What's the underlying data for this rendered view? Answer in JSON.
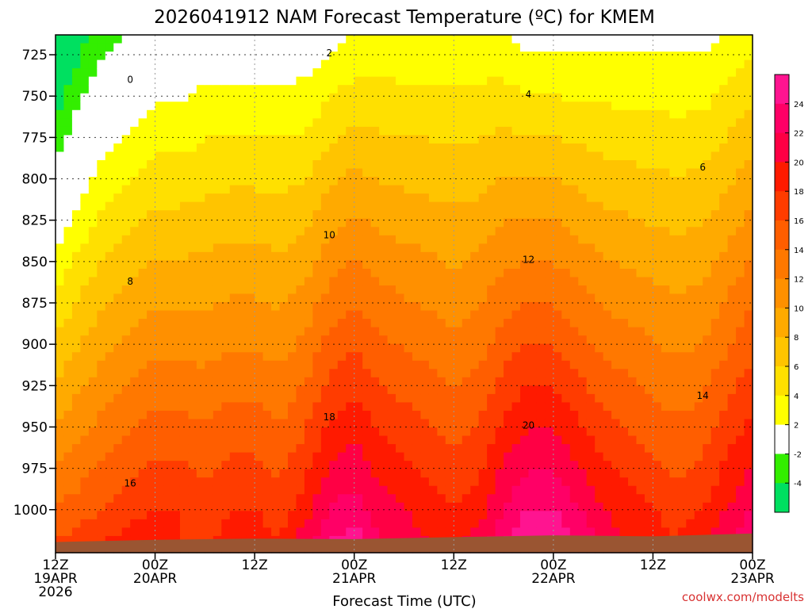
{
  "colors": {
    "bands": [
      {
        "from": -6,
        "to": -4,
        "color": "#00e060"
      },
      {
        "from": -4,
        "to": -2,
        "color": "#33ee00"
      },
      {
        "from": -2,
        "to": 2,
        "color": "#ffffff"
      },
      {
        "from": 2,
        "to": 4,
        "color": "#ffff00"
      },
      {
        "from": 4,
        "to": 6,
        "color": "#ffe000"
      },
      {
        "from": 6,
        "to": 8,
        "color": "#ffc400"
      },
      {
        "from": 8,
        "to": 10,
        "color": "#ffaa00"
      },
      {
        "from": 10,
        "to": 12,
        "color": "#ff9000"
      },
      {
        "from": 12,
        "to": 14,
        "color": "#ff7800"
      },
      {
        "from": 14,
        "to": 16,
        "color": "#ff5e00"
      },
      {
        "from": 16,
        "to": 18,
        "color": "#ff3c00"
      },
      {
        "from": 18,
        "to": 20,
        "color": "#ff1a00"
      },
      {
        "from": 20,
        "to": 22,
        "color": "#ff0044"
      },
      {
        "from": 22,
        "to": 24,
        "color": "#ff0066"
      },
      {
        "from": 24,
        "to": 26,
        "color": "#ff1490"
      }
    ],
    "ground": "#9a5532",
    "zero_contour": "#aa0066",
    "credit": "#d83232"
  },
  "chart_data": {
    "type": "heatmap",
    "title": "2026041912 NAM Forecast Temperature (ºC) for KMEM",
    "xlabel": "Forecast Time (UTC)",
    "ylabel": "",
    "credit": "coolwx.com/modelts",
    "x_range_hours": [
      0,
      84
    ],
    "y_range_hpa": [
      1026,
      713
    ],
    "y_ticks": [
      725,
      750,
      775,
      800,
      825,
      850,
      875,
      900,
      925,
      950,
      975,
      1000
    ],
    "x_ticks": [
      {
        "hour": 0,
        "lines": [
          "12Z",
          "19APR",
          "2026"
        ]
      },
      {
        "hour": 12,
        "lines": [
          "00Z",
          "20APR"
        ]
      },
      {
        "hour": 24,
        "lines": [
          "12Z"
        ]
      },
      {
        "hour": 36,
        "lines": [
          "00Z",
          "21APR"
        ]
      },
      {
        "hour": 48,
        "lines": [
          "12Z"
        ]
      },
      {
        "hour": 60,
        "lines": [
          "00Z",
          "22APR"
        ]
      },
      {
        "hour": 72,
        "lines": [
          "12Z"
        ]
      },
      {
        "hour": 84,
        "lines": [
          "00Z",
          "23APR"
        ]
      }
    ],
    "colorbar_labels": [
      "24",
      "22",
      "20",
      "18",
      "16",
      "14",
      "12",
      "10",
      "8",
      "6",
      "4",
      "2",
      "-2",
      "-4"
    ],
    "contour_levels": [
      0,
      2,
      4,
      6,
      8,
      10,
      12,
      14,
      16,
      18,
      20
    ],
    "temperature_columns": [
      {
        "hour": 0,
        "t725": -7,
        "t1000": 14,
        "t1018": 16
      },
      {
        "hour": 3,
        "t725": -4,
        "t1000": 15,
        "t1018": 17
      },
      {
        "hour": 6,
        "t725": -2,
        "t1000": 16,
        "t1018": 18
      },
      {
        "hour": 9,
        "t725": -1,
        "t1000": 17,
        "t1018": 19
      },
      {
        "hour": 12,
        "t725": 0,
        "t1000": 18,
        "t1018": 19
      },
      {
        "hour": 15,
        "t725": 0,
        "t1000": 18,
        "t1018": 18
      },
      {
        "hour": 18,
        "t725": 1,
        "t1000": 17,
        "t1018": 17
      },
      {
        "hour": 21,
        "t725": 1,
        "t1000": 18,
        "t1018": 19
      },
      {
        "hour": 24,
        "t725": 1,
        "t1000": 18,
        "t1018": 19
      },
      {
        "hour": 27,
        "t725": 1,
        "t1000": 17,
        "t1018": 18
      },
      {
        "hour": 30,
        "t725": 1,
        "t1000": 19,
        "t1018": 21
      },
      {
        "hour": 33,
        "t725": 2,
        "t1000": 22,
        "t1018": 24
      },
      {
        "hour": 36,
        "t725": 3,
        "t1000": 23,
        "t1018": 25
      },
      {
        "hour": 39,
        "t725": 3,
        "t1000": 21,
        "t1018": 22
      },
      {
        "hour": 42,
        "t725": 3,
        "t1000": 20,
        "t1018": 21
      },
      {
        "hour": 45,
        "t725": 3,
        "t1000": 19,
        "t1018": 20
      },
      {
        "hour": 48,
        "t725": 3,
        "t1000": 18,
        "t1018": 19
      },
      {
        "hour": 51,
        "t725": 3,
        "t1000": 19,
        "t1018": 21
      },
      {
        "hour": 54,
        "t725": 3,
        "t1000": 22,
        "t1018": 24
      },
      {
        "hour": 57,
        "t725": 2,
        "t1000": 24,
        "t1018": 26
      },
      {
        "hour": 60,
        "t725": 2,
        "t1000": 24,
        "t1018": 26
      },
      {
        "hour": 63,
        "t725": 2,
        "t1000": 22,
        "t1018": 24
      },
      {
        "hour": 66,
        "t725": 2,
        "t1000": 20,
        "t1018": 21
      },
      {
        "hour": 69,
        "t725": 2,
        "t1000": 19,
        "t1018": 20
      },
      {
        "hour": 72,
        "t725": 2,
        "t1000": 18,
        "t1018": 19
      },
      {
        "hour": 75,
        "t725": 2,
        "t1000": 17,
        "t1018": 18
      },
      {
        "hour": 78,
        "t725": 2,
        "t1000": 18,
        "t1018": 20
      },
      {
        "hour": 81,
        "t725": 3,
        "t1000": 20,
        "t1018": 22
      },
      {
        "hour": 84,
        "t725": 4,
        "t1000": 22,
        "t1018": 24
      }
    ],
    "surface_pressure_hpa": [
      {
        "hour": 0,
        "p": 1019.5
      },
      {
        "hour": 12,
        "p": 1018.2
      },
      {
        "hour": 24,
        "p": 1017.5
      },
      {
        "hour": 36,
        "p": 1017.8
      },
      {
        "hour": 48,
        "p": 1016.6
      },
      {
        "hour": 60,
        "p": 1015.5
      },
      {
        "hour": 72,
        "p": 1016.1
      },
      {
        "hour": 84,
        "p": 1014.4
      }
    ]
  }
}
